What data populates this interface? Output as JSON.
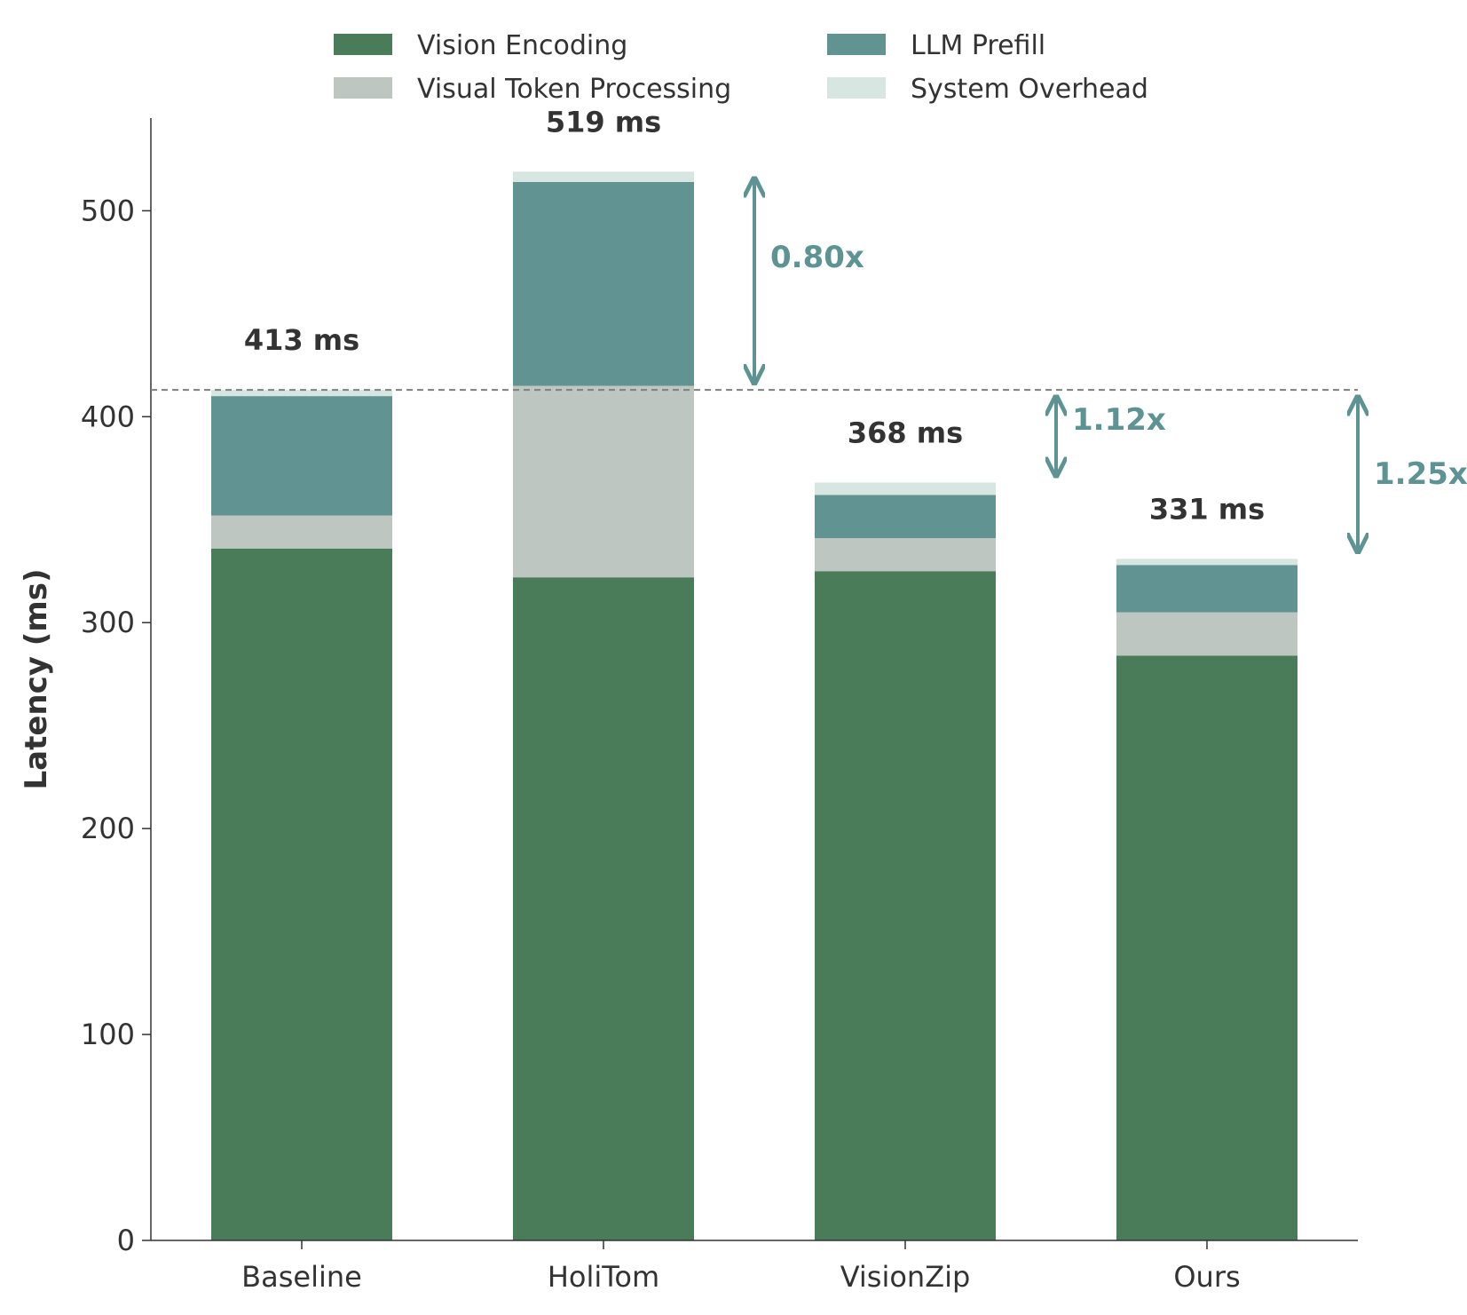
{
  "chart_data": {
    "type": "bar",
    "stacked": true,
    "categories": [
      "Baseline",
      "HoliTom",
      "VisionZip",
      "Ours"
    ],
    "ylabel": "Latency (ms)",
    "ylim": [
      0,
      545
    ],
    "yticks": [
      0,
      100,
      200,
      300,
      400,
      500
    ],
    "series": [
      {
        "name": "Vision Encoding",
        "color": "#4a7c59",
        "values": [
          336,
          322,
          325,
          284
        ]
      },
      {
        "name": "Visual Token Processing",
        "color": "#bdc6c0",
        "values": [
          16,
          93,
          16,
          21
        ]
      },
      {
        "name": "LLM Prefill",
        "color": "#619393",
        "values": [
          58,
          99,
          21,
          23
        ]
      },
      {
        "name": "System Overhead",
        "color": "#d7e6e1",
        "values": [
          3,
          5,
          6,
          3
        ]
      }
    ],
    "totals": [
      "413 ms",
      "519 ms",
      "368 ms",
      "331 ms"
    ],
    "baseline_line": {
      "value": 413,
      "style": "dashed"
    },
    "speedups": [
      {
        "category": "HoliTom",
        "label": "0.80x",
        "from": 413,
        "to": 519
      },
      {
        "category": "VisionZip",
        "label": "1.12x",
        "from": 413,
        "to": 368
      },
      {
        "category": "Ours",
        "label": "1.25x",
        "from": 413,
        "to": 331
      }
    ],
    "annotation_color": "#5e9393",
    "legend_position": "top",
    "grid": false
  }
}
